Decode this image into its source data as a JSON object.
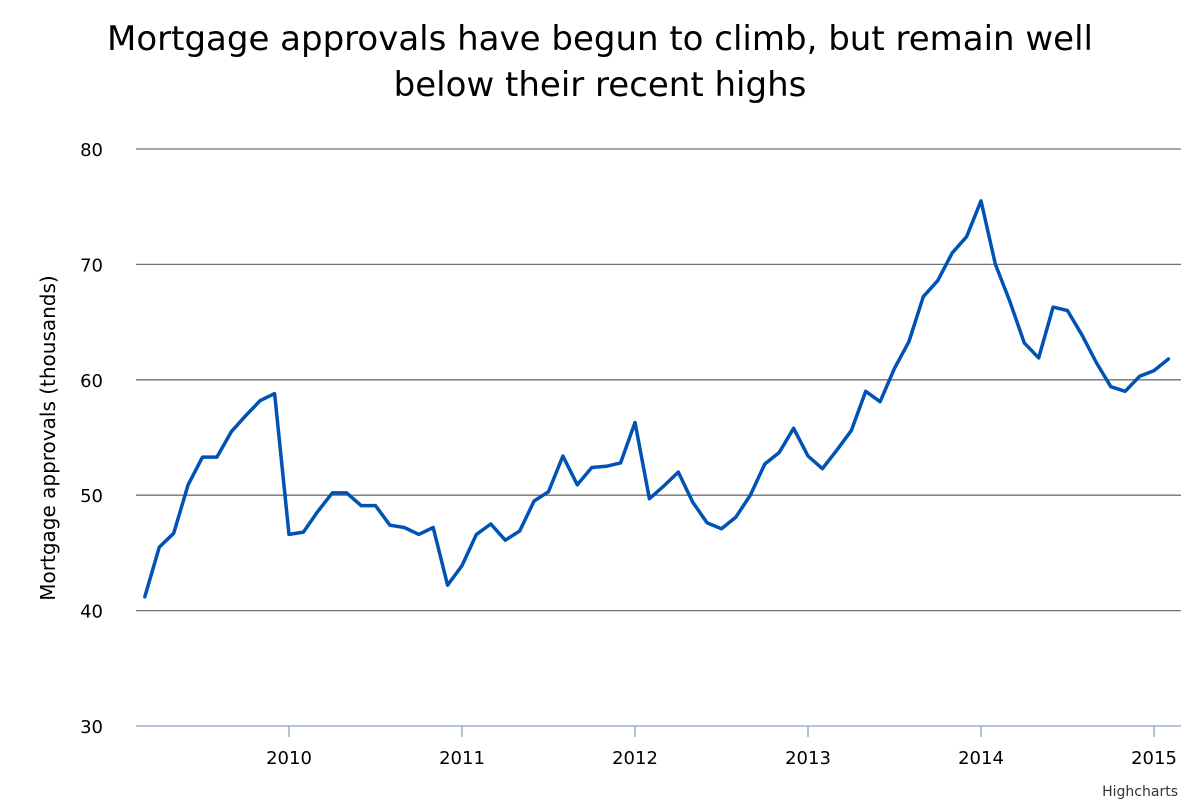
{
  "chart_data": {
    "type": "line",
    "title": "Mortgage approvals have begun to climb, but remain well below their recent highs",
    "ylabel": "Mortgage approvals (thousands)",
    "xlabel": "",
    "ylim": [
      30,
      80
    ],
    "yticks": [
      30,
      40,
      50,
      60,
      70,
      80
    ],
    "xlim": [
      "2009-03",
      "2015-02"
    ],
    "xticks": [
      "2010",
      "2011",
      "2012",
      "2013",
      "2014",
      "2015"
    ],
    "grid": true,
    "legend": "none",
    "series_color": "#0052b4",
    "x": [
      "2009-03",
      "2009-04",
      "2009-05",
      "2009-06",
      "2009-07",
      "2009-08",
      "2009-09",
      "2009-10",
      "2009-11",
      "2009-12",
      "2010-01",
      "2010-02",
      "2010-03",
      "2010-04",
      "2010-05",
      "2010-06",
      "2010-07",
      "2010-08",
      "2010-09",
      "2010-10",
      "2010-11",
      "2010-12",
      "2011-01",
      "2011-02",
      "2011-03",
      "2011-04",
      "2011-05",
      "2011-06",
      "2011-07",
      "2011-08",
      "2011-09",
      "2011-10",
      "2011-11",
      "2011-12",
      "2012-01",
      "2012-02",
      "2012-03",
      "2012-04",
      "2012-05",
      "2012-06",
      "2012-07",
      "2012-08",
      "2012-09",
      "2012-10",
      "2012-11",
      "2012-12",
      "2013-01",
      "2013-02",
      "2013-03",
      "2013-04",
      "2013-05",
      "2013-06",
      "2013-07",
      "2013-08",
      "2013-09",
      "2013-10",
      "2013-11",
      "2013-12",
      "2014-01",
      "2014-02",
      "2014-03",
      "2014-04",
      "2014-05",
      "2014-06",
      "2014-07",
      "2014-08",
      "2014-09",
      "2014-10",
      "2014-11",
      "2014-12",
      "2015-01",
      "2015-02"
    ],
    "values": [
      41.2,
      45.5,
      46.7,
      50.9,
      53.3,
      53.3,
      55.5,
      56.9,
      58.2,
      58.8,
      46.6,
      46.8,
      48.6,
      50.2,
      50.2,
      49.1,
      49.1,
      47.4,
      47.2,
      46.6,
      47.2,
      42.2,
      43.9,
      46.6,
      47.5,
      46.1,
      46.9,
      49.5,
      50.3,
      53.4,
      50.9,
      52.4,
      52.5,
      52.8,
      56.3,
      49.7,
      50.8,
      52.0,
      49.4,
      47.6,
      47.1,
      48.1,
      50.0,
      52.7,
      53.7,
      55.8,
      53.4,
      52.3,
      53.9,
      55.6,
      59.0,
      58.1,
      61.0,
      63.3,
      67.2,
      68.6,
      71.0,
      72.4,
      75.5,
      70.0,
      66.8,
      63.2,
      61.9,
      66.3,
      66.0,
      63.9,
      61.5,
      59.4,
      59.0,
      60.3,
      60.8,
      61.8
    ]
  },
  "credits": "Highcharts"
}
